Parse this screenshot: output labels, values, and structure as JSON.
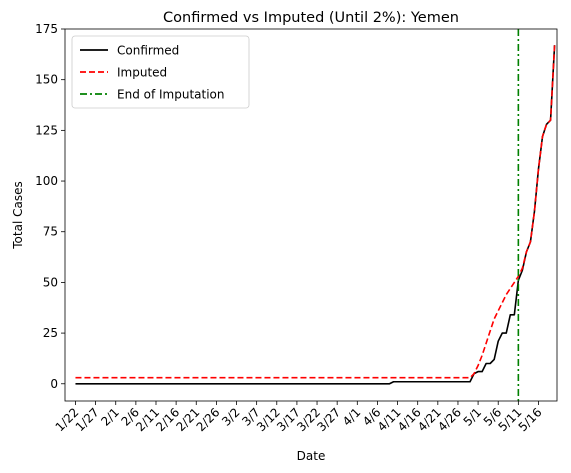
{
  "chart_data": {
    "type": "line",
    "title": "Confirmed vs Imputed (Until 2%): Yemen",
    "xlabel": "Date",
    "ylabel": "Total Cases",
    "ylim": [
      -8.5,
      175
    ],
    "yticks": [
      0,
      25,
      50,
      75,
      100,
      125,
      150,
      175
    ],
    "xlim": [
      -2.6,
      119.6
    ],
    "xtick_positions": [
      0,
      5,
      10,
      15,
      20,
      25,
      30,
      35,
      40,
      45,
      50,
      55,
      60,
      65,
      70,
      75,
      80,
      85,
      90,
      95,
      100,
      105,
      110,
      115
    ],
    "xtick_labels": [
      "1/22",
      "1/27",
      "2/1",
      "2/6",
      "2/11",
      "2/16",
      "2/21",
      "2/26",
      "3/2",
      "3/7",
      "3/12",
      "3/17",
      "3/22",
      "3/27",
      "4/1",
      "4/6",
      "4/11",
      "4/16",
      "4/21",
      "4/26",
      "5/1",
      "5/6",
      "5/11",
      "5/16"
    ],
    "legend_position": "upper left",
    "series": [
      {
        "name": "Confirmed",
        "color": "#000000",
        "style": "solid",
        "points": [
          [
            0,
            0
          ],
          [
            78,
            0
          ],
          [
            79,
            1
          ],
          [
            98,
            1
          ],
          [
            99,
            5
          ],
          [
            100,
            6
          ],
          [
            101,
            6
          ],
          [
            102,
            10
          ],
          [
            103,
            10
          ],
          [
            104,
            12
          ],
          [
            105,
            21
          ],
          [
            106,
            25
          ],
          [
            107,
            25
          ],
          [
            108,
            34
          ],
          [
            109,
            34
          ],
          [
            110,
            51
          ],
          [
            111,
            56
          ],
          [
            112,
            65
          ],
          [
            113,
            70
          ],
          [
            114,
            85
          ],
          [
            115,
            106
          ],
          [
            116,
            122
          ],
          [
            117,
            128
          ],
          [
            118,
            130
          ],
          [
            119,
            167
          ]
        ]
      },
      {
        "name": "Imputed",
        "color": "#ff0000",
        "style": "dashed",
        "points": [
          [
            0,
            3
          ],
          [
            98,
            3
          ],
          [
            99,
            5
          ],
          [
            100,
            9
          ],
          [
            101,
            14
          ],
          [
            102,
            20
          ],
          [
            103,
            26
          ],
          [
            104,
            32
          ],
          [
            105,
            36
          ],
          [
            106,
            40
          ],
          [
            107,
            44
          ],
          [
            108,
            47
          ],
          [
            109,
            50
          ],
          [
            110,
            53
          ],
          [
            111,
            57
          ],
          [
            112,
            65
          ],
          [
            113,
            70
          ],
          [
            114,
            85
          ],
          [
            115,
            106
          ],
          [
            116,
            122
          ],
          [
            117,
            128
          ],
          [
            118,
            130
          ],
          [
            119,
            167
          ]
        ]
      }
    ],
    "vline": {
      "name": "End of Imputation",
      "x": 110,
      "color": "#008000",
      "style": "dashdot"
    }
  }
}
